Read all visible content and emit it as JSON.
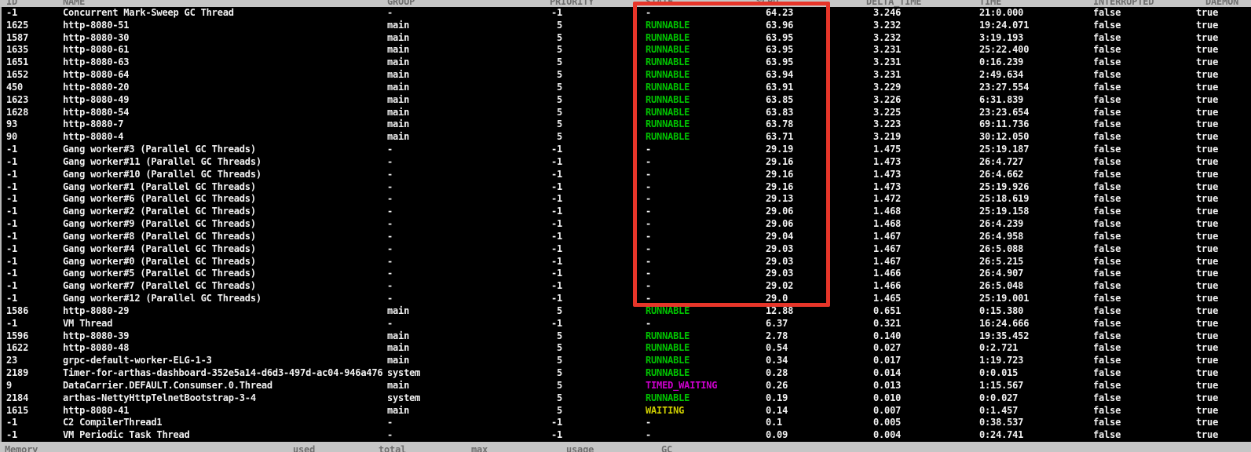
{
  "colors": {
    "background": "#000000",
    "text": "#f2f2f2",
    "runnable": "#00c300",
    "timed_waiting": "#cd00cd",
    "waiting": "#cdcd00",
    "header_bg": "#c6c6c6",
    "header_text": "#6e6e6e",
    "scrollbar": "#b5b5b5",
    "annotation": "#e73529"
  },
  "table": {
    "headers": [
      "ID",
      "NAME",
      "GROUP",
      "PRIORITY",
      "STATE",
      "%CPU",
      "DELTA_TIME",
      "TIME",
      "INTERRUPTED",
      "DAEMON"
    ],
    "rows": [
      [
        "-1",
        "Concurrent Mark-Sweep GC Thread",
        "-",
        "-1",
        "-",
        "64.23",
        "3.246",
        "21:0.000",
        "false",
        "true"
      ],
      [
        "1625",
        "http-8080-51",
        "main",
        "5",
        "RUNNABLE",
        "63.96",
        "3.232",
        "19:24.071",
        "false",
        "true"
      ],
      [
        "1587",
        "http-8080-30",
        "main",
        "5",
        "RUNNABLE",
        "63.95",
        "3.232",
        "3:19.193",
        "false",
        "true"
      ],
      [
        "1635",
        "http-8080-61",
        "main",
        "5",
        "RUNNABLE",
        "63.95",
        "3.231",
        "25:22.400",
        "false",
        "true"
      ],
      [
        "1651",
        "http-8080-63",
        "main",
        "5",
        "RUNNABLE",
        "63.95",
        "3.231",
        "0:16.239",
        "false",
        "true"
      ],
      [
        "1652",
        "http-8080-64",
        "main",
        "5",
        "RUNNABLE",
        "63.94",
        "3.231",
        "2:49.634",
        "false",
        "true"
      ],
      [
        "450",
        "http-8080-20",
        "main",
        "5",
        "RUNNABLE",
        "63.91",
        "3.229",
        "23:27.554",
        "false",
        "true"
      ],
      [
        "1623",
        "http-8080-49",
        "main",
        "5",
        "RUNNABLE",
        "63.85",
        "3.226",
        "6:31.839",
        "false",
        "true"
      ],
      [
        "1628",
        "http-8080-54",
        "main",
        "5",
        "RUNNABLE",
        "63.83",
        "3.225",
        "23:23.654",
        "false",
        "true"
      ],
      [
        "93",
        "http-8080-7",
        "main",
        "5",
        "RUNNABLE",
        "63.78",
        "3.223",
        "69:11.736",
        "false",
        "true"
      ],
      [
        "90",
        "http-8080-4",
        "main",
        "5",
        "RUNNABLE",
        "63.71",
        "3.219",
        "30:12.050",
        "false",
        "true"
      ],
      [
        "-1",
        "Gang worker#3 (Parallel GC Threads)",
        "-",
        "-1",
        "-",
        "29.19",
        "1.475",
        "25:19.187",
        "false",
        "true"
      ],
      [
        "-1",
        "Gang worker#11 (Parallel GC Threads)",
        "-",
        "-1",
        "-",
        "29.16",
        "1.473",
        "26:4.727",
        "false",
        "true"
      ],
      [
        "-1",
        "Gang worker#10 (Parallel GC Threads)",
        "-",
        "-1",
        "-",
        "29.16",
        "1.473",
        "26:4.662",
        "false",
        "true"
      ],
      [
        "-1",
        "Gang worker#1 (Parallel GC Threads)",
        "-",
        "-1",
        "-",
        "29.16",
        "1.473",
        "25:19.926",
        "false",
        "true"
      ],
      [
        "-1",
        "Gang worker#6 (Parallel GC Threads)",
        "-",
        "-1",
        "-",
        "29.13",
        "1.472",
        "25:18.619",
        "false",
        "true"
      ],
      [
        "-1",
        "Gang worker#2 (Parallel GC Threads)",
        "-",
        "-1",
        "-",
        "29.06",
        "1.468",
        "25:19.158",
        "false",
        "true"
      ],
      [
        "-1",
        "Gang worker#9 (Parallel GC Threads)",
        "-",
        "-1",
        "-",
        "29.06",
        "1.468",
        "26:4.239",
        "false",
        "true"
      ],
      [
        "-1",
        "Gang worker#8 (Parallel GC Threads)",
        "-",
        "-1",
        "-",
        "29.04",
        "1.467",
        "26:4.958",
        "false",
        "true"
      ],
      [
        "-1",
        "Gang worker#4 (Parallel GC Threads)",
        "-",
        "-1",
        "-",
        "29.03",
        "1.467",
        "26:5.088",
        "false",
        "true"
      ],
      [
        "-1",
        "Gang worker#0 (Parallel GC Threads)",
        "-",
        "-1",
        "-",
        "29.03",
        "1.467",
        "26:5.215",
        "false",
        "true"
      ],
      [
        "-1",
        "Gang worker#5 (Parallel GC Threads)",
        "-",
        "-1",
        "-",
        "29.03",
        "1.466",
        "26:4.907",
        "false",
        "true"
      ],
      [
        "-1",
        "Gang worker#7 (Parallel GC Threads)",
        "-",
        "-1",
        "-",
        "29.02",
        "1.466",
        "26:5.048",
        "false",
        "true"
      ],
      [
        "-1",
        "Gang worker#12 (Parallel GC Threads)",
        "-",
        "-1",
        "-",
        "29.0",
        "1.465",
        "25:19.001",
        "false",
        "true"
      ],
      [
        "1586",
        "http-8080-29",
        "main",
        "5",
        "RUNNABLE",
        "12.88",
        "0.651",
        "0:15.380",
        "false",
        "true"
      ],
      [
        "-1",
        "VM Thread",
        "-",
        "-1",
        "-",
        "6.37",
        "0.321",
        "16:24.666",
        "false",
        "true"
      ],
      [
        "1596",
        "http-8080-39",
        "main",
        "5",
        "RUNNABLE",
        "2.78",
        "0.140",
        "19:35.452",
        "false",
        "true"
      ],
      [
        "1622",
        "http-8080-48",
        "main",
        "5",
        "RUNNABLE",
        "0.54",
        "0.027",
        "0:2.721",
        "false",
        "true"
      ],
      [
        "23",
        "grpc-default-worker-ELG-1-3",
        "main",
        "5",
        "RUNNABLE",
        "0.34",
        "0.017",
        "1:19.723",
        "false",
        "true"
      ],
      [
        "2189",
        "Timer-for-arthas-dashboard-352e5a14-d6d3-497d-ac04-946a476",
        "system",
        "5",
        "RUNNABLE",
        "0.28",
        "0.014",
        "0:0.015",
        "false",
        "true"
      ],
      [
        "9",
        "DataCarrier.DEFAULT.Consumser.0.Thread",
        "main",
        "5",
        "TIMED_WAITING",
        "0.26",
        "0.013",
        "1:15.567",
        "false",
        "true"
      ],
      [
        "2184",
        "arthas-NettyHttpTelnetBootstrap-3-4",
        "system",
        "5",
        "RUNNABLE",
        "0.19",
        "0.010",
        "0:0.027",
        "false",
        "true"
      ],
      [
        "1615",
        "http-8080-41",
        "main",
        "5",
        "WAITING",
        "0.14",
        "0.007",
        "0:1.457",
        "false",
        "true"
      ],
      [
        "-1",
        "C2 CompilerThread1",
        "-",
        "-1",
        "-",
        "0.1",
        "0.005",
        "0:38.537",
        "false",
        "true"
      ],
      [
        "-1",
        "VM Periodic Task Thread",
        "-",
        "-1",
        "-",
        "0.09",
        "0.004",
        "0:24.741",
        "false",
        "true"
      ]
    ]
  },
  "memory_panel": {
    "headers": [
      "Memory",
      "used",
      "total",
      "max",
      "usage",
      "GC"
    ]
  },
  "annotation": {
    "shape": "rectangle",
    "purpose": "highlights STATE and %CPU columns of the top high-CPU thread rows"
  }
}
